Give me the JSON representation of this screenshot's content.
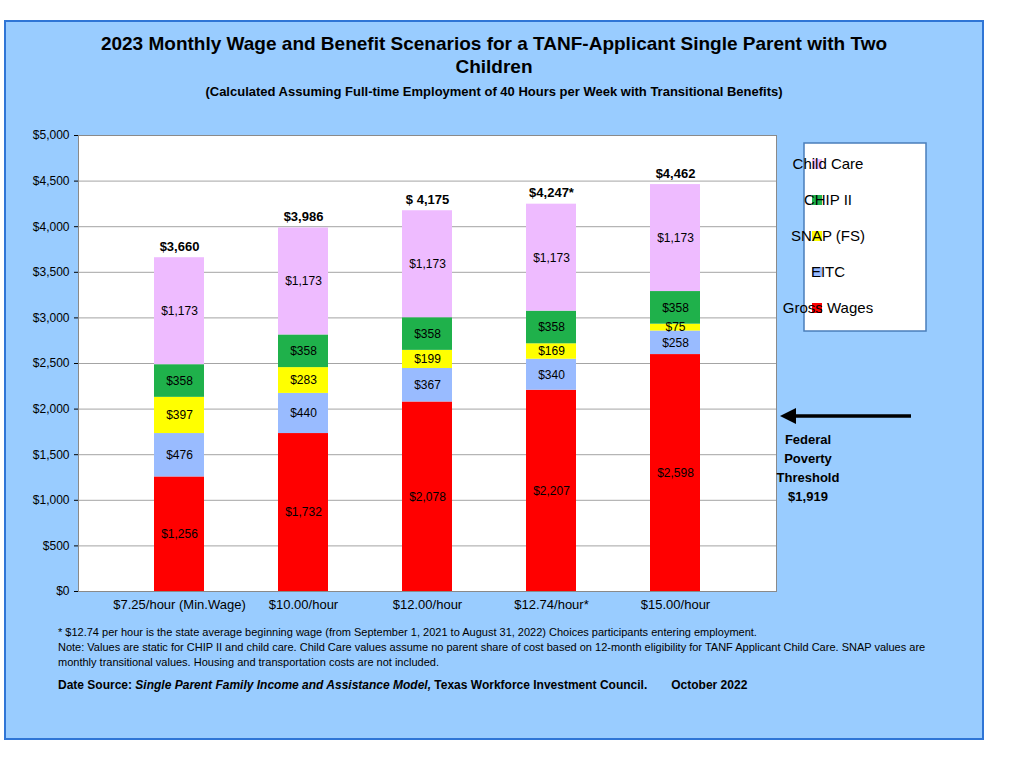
{
  "chart_data": {
    "type": "bar",
    "stacked": true,
    "title": "2023 Monthly Wage and Benefit Scenarios for a TANF-Applicant Single Parent with Two Children",
    "subtitle": "(Calculated Assuming Full-time Employment of 40 Hours per Week with Transitional Benefits)",
    "categories": [
      "$7.25/hour (Min.Wage)",
      "$10.00/hour",
      "$12.00/hour",
      "$12.74/hour*",
      "$15.00/hour"
    ],
    "series": [
      {
        "name": "Gross Wages",
        "color": "#ff0000",
        "values": [
          1256,
          1732,
          2078,
          2207,
          2598
        ],
        "value_labels": [
          "$1,256",
          "$1,732",
          "$2,078",
          "$2,207",
          "$2,598"
        ]
      },
      {
        "name": "EITC",
        "color": "#99bbff",
        "values": [
          476,
          440,
          367,
          340,
          258
        ],
        "value_labels": [
          "$476",
          "$440",
          "$367",
          "$340",
          "$258"
        ]
      },
      {
        "name": "SNAP (FS)",
        "color": "#ffff00",
        "values": [
          397,
          283,
          199,
          169,
          75
        ],
        "value_labels": [
          "$397",
          "$283",
          "$199",
          "$169",
          "$75"
        ]
      },
      {
        "name": "CHIP II",
        "color": "#1fb14b",
        "values": [
          358,
          358,
          358,
          358,
          358
        ],
        "value_labels": [
          "$358",
          "$358",
          "$358",
          "$358",
          "$358"
        ]
      },
      {
        "name": "Child Care",
        "color": "#eebbff",
        "values": [
          1173,
          1173,
          1173,
          1173,
          1173
        ],
        "value_labels": [
          "$1,173",
          "$1,173",
          "$1,173",
          "$1,173",
          "$1,173"
        ]
      }
    ],
    "totals": {
      "values": [
        3660,
        3986,
        4175,
        4247,
        4462
      ],
      "value_labels": [
        "$3,660",
        "$3,986",
        "$ 4,175",
        "$4,247*",
        "$4,462"
      ]
    },
    "ylim": [
      0,
      5000
    ],
    "yticks": [
      {
        "value": 0,
        "label": "$0"
      },
      {
        "value": 500,
        "label": "$500"
      },
      {
        "value": 1000,
        "label": "$1,000"
      },
      {
        "value": 1500,
        "label": "$1,500"
      },
      {
        "value": 2000,
        "label": "$2,000"
      },
      {
        "value": 2500,
        "label": "$2,500"
      },
      {
        "value": 3000,
        "label": "$3,000"
      },
      {
        "value": 3500,
        "label": "$3,500"
      },
      {
        "value": 4000,
        "label": "$4,000"
      },
      {
        "value": 4500,
        "label": "$4,500"
      },
      {
        "value": 5000,
        "label": "$5,000"
      }
    ],
    "grid": true,
    "data_labels": true,
    "legend": "right",
    "annotation": {
      "text": [
        "Federal",
        "Poverty",
        "Threshold",
        "$1,919"
      ],
      "value": 1919
    },
    "notes": [
      "* $12.74 per hour is the state average beginning wage (from September 1, 2021 to August 31, 2022) Choices participants entering employment.",
      "Note: Values are static for CHIP II and child care. Child Care values assume no parent share of cost based on 12-month eligibility for TANF Applicant Child Care. SNAP values are monthly transitional values. Housing and transportation costs are not included."
    ],
    "source": {
      "label": "Date Source:",
      "title": "Single Parent Family Income and Assistance Model,",
      "org": "Texas Workforce Investment Council.",
      "date": "October 2022"
    }
  }
}
